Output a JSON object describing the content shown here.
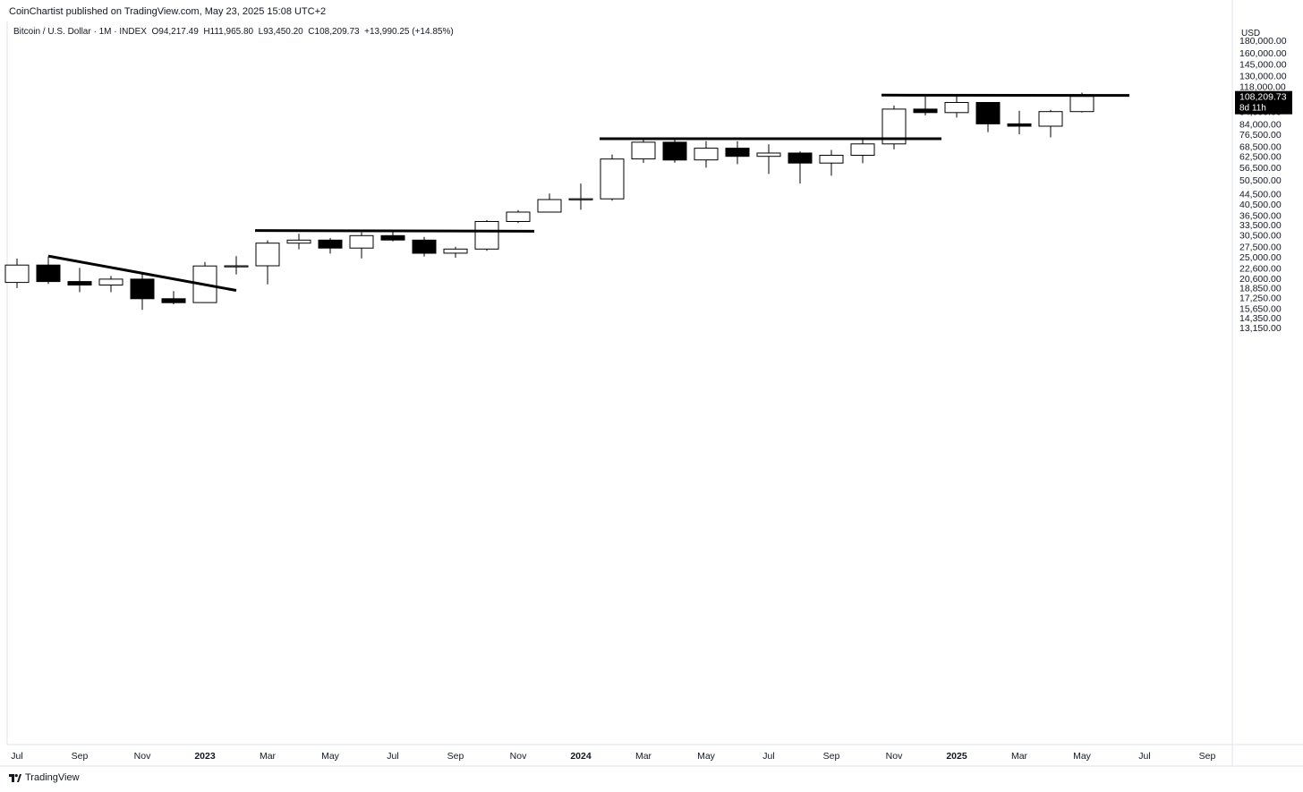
{
  "header": {
    "published": "CoinChartist published on TradingView.com, May 23, 2025 15:08 UTC+2",
    "symbol": "Bitcoin / U.S. Dollar · 1M · INDEX",
    "open": "O94,217.49",
    "high": "H111,965.80",
    "low": "L93,450.20",
    "close": "C108,209.73",
    "change": "+13,990.25 (+14.85%)"
  },
  "footer": {
    "brand": "TradingView"
  },
  "price_axis": {
    "currency": "USD",
    "ticks": [
      "180,000.00",
      "160,000.00",
      "145,000.00",
      "130,000.00",
      "118,000.00",
      "94,000.00",
      "84,000.00",
      "76,500.00",
      "68,500.00",
      "62,500.00",
      "56,500.00",
      "50,500.00",
      "44,500.00",
      "40,500.00",
      "36,500.00",
      "33,500.00",
      "30,500.00",
      "27,500.00",
      "25,000.00",
      "22,600.00",
      "20,600.00",
      "18,850.00",
      "17,250.00",
      "15,650.00",
      "14,350.00",
      "13,150.00"
    ],
    "last_price_label": "108,209.73",
    "countdown_label": "8d 11h"
  },
  "time_axis": {
    "labels": [
      {
        "text": "Jul",
        "bold": false
      },
      {
        "text": "Sep",
        "bold": false
      },
      {
        "text": "Nov",
        "bold": false
      },
      {
        "text": "2023",
        "bold": true
      },
      {
        "text": "Mar",
        "bold": false
      },
      {
        "text": "May",
        "bold": false
      },
      {
        "text": "Jul",
        "bold": false
      },
      {
        "text": "Sep",
        "bold": false
      },
      {
        "text": "Nov",
        "bold": false
      },
      {
        "text": "2024",
        "bold": true
      },
      {
        "text": "Mar",
        "bold": false
      },
      {
        "text": "May",
        "bold": false
      },
      {
        "text": "Jul",
        "bold": false
      },
      {
        "text": "Sep",
        "bold": false
      },
      {
        "text": "Nov",
        "bold": false
      },
      {
        "text": "2025",
        "bold": true
      },
      {
        "text": "Mar",
        "bold": false
      },
      {
        "text": "May",
        "bold": false
      },
      {
        "text": "Jul",
        "bold": false
      },
      {
        "text": "Sep",
        "bold": false
      }
    ]
  },
  "colors": {
    "up_fill": "#ffffff",
    "down_fill": "#000000",
    "outline": "#000000",
    "grid": "#f0f3fa",
    "axis_text": "#131722",
    "price_tag": "#000000"
  },
  "chart_data": {
    "type": "candlestick",
    "scale": "log",
    "x_unit": "month",
    "grid": false,
    "ylim": [
      12600,
      205000
    ],
    "candles": [
      {
        "date": "2022-07",
        "open": 19900,
        "high": 24700,
        "low": 18900,
        "close": 23300
      },
      {
        "date": "2022-08",
        "open": 23300,
        "high": 25200,
        "low": 19600,
        "close": 20050
      },
      {
        "date": "2022-09",
        "open": 20050,
        "high": 22700,
        "low": 18200,
        "close": 19430
      },
      {
        "date": "2022-10",
        "open": 19430,
        "high": 21100,
        "low": 18200,
        "close": 20500
      },
      {
        "date": "2022-11",
        "open": 20500,
        "high": 21500,
        "low": 15500,
        "close": 17150
      },
      {
        "date": "2022-12",
        "open": 17150,
        "high": 18400,
        "low": 16300,
        "close": 16550
      },
      {
        "date": "2023-01",
        "open": 16550,
        "high": 23950,
        "low": 16500,
        "close": 23100
      },
      {
        "date": "2023-02",
        "open": 23100,
        "high": 25250,
        "low": 21400,
        "close": 23150
      },
      {
        "date": "2023-03",
        "open": 23150,
        "high": 29200,
        "low": 19550,
        "close": 28450
      },
      {
        "date": "2023-04",
        "open": 28450,
        "high": 31000,
        "low": 26900,
        "close": 29250
      },
      {
        "date": "2023-05",
        "open": 29250,
        "high": 29800,
        "low": 25850,
        "close": 27200
      },
      {
        "date": "2023-06",
        "open": 27200,
        "high": 31400,
        "low": 24750,
        "close": 30450
      },
      {
        "date": "2023-07",
        "open": 30450,
        "high": 31800,
        "low": 28900,
        "close": 29250
      },
      {
        "date": "2023-08",
        "open": 29250,
        "high": 30100,
        "low": 25200,
        "close": 25950
      },
      {
        "date": "2023-09",
        "open": 25950,
        "high": 27500,
        "low": 24900,
        "close": 26950
      },
      {
        "date": "2023-10",
        "open": 26950,
        "high": 35100,
        "low": 26550,
        "close": 34650
      },
      {
        "date": "2023-11",
        "open": 34650,
        "high": 38450,
        "low": 34150,
        "close": 37750
      },
      {
        "date": "2023-12",
        "open": 37750,
        "high": 44700,
        "low": 37650,
        "close": 42300
      },
      {
        "date": "2024-01",
        "open": 42300,
        "high": 48950,
        "low": 38550,
        "close": 42600
      },
      {
        "date": "2024-02",
        "open": 42600,
        "high": 63800,
        "low": 41900,
        "close": 61200
      },
      {
        "date": "2024-03",
        "open": 61200,
        "high": 73800,
        "low": 59100,
        "close": 71300
      },
      {
        "date": "2024-04",
        "open": 71300,
        "high": 72800,
        "low": 59200,
        "close": 60650
      },
      {
        "date": "2024-05",
        "open": 60650,
        "high": 71950,
        "low": 56550,
        "close": 67500
      },
      {
        "date": "2024-06",
        "open": 67500,
        "high": 71950,
        "low": 58400,
        "close": 62700
      },
      {
        "date": "2024-07",
        "open": 62700,
        "high": 70000,
        "low": 53500,
        "close": 64600
      },
      {
        "date": "2024-08",
        "open": 64600,
        "high": 65600,
        "low": 49000,
        "close": 58950
      },
      {
        "date": "2024-09",
        "open": 58950,
        "high": 66500,
        "low": 52550,
        "close": 63300
      },
      {
        "date": "2024-10",
        "open": 63300,
        "high": 73600,
        "low": 58900,
        "close": 70200
      },
      {
        "date": "2024-11",
        "open": 70200,
        "high": 99600,
        "low": 66800,
        "close": 96400
      },
      {
        "date": "2024-12",
        "open": 96400,
        "high": 108300,
        "low": 91000,
        "close": 93400
      },
      {
        "date": "2025-01",
        "open": 93400,
        "high": 109400,
        "low": 89200,
        "close": 102400
      },
      {
        "date": "2025-02",
        "open": 102400,
        "high": 102500,
        "low": 78200,
        "close": 84300
      },
      {
        "date": "2025-03",
        "open": 84300,
        "high": 95000,
        "low": 76600,
        "close": 82500
      },
      {
        "date": "2025-04",
        "open": 82500,
        "high": 95800,
        "low": 74500,
        "close": 94200
      },
      {
        "date": "2025-05",
        "open": 94217.49,
        "high": 111965.8,
        "low": 93450.2,
        "close": 108209.73
      }
    ],
    "trendlines": [
      {
        "kind": "descending",
        "from": {
          "date": "2022-08",
          "price": 25300
        },
        "to": {
          "date": "2023-02",
          "price": 18500
        }
      },
      {
        "kind": "horizontal",
        "from": {
          "date": "2023-03",
          "price": 31900
        },
        "to": {
          "date": "2023-11",
          "price": 31700
        }
      },
      {
        "kind": "horizontal",
        "from": {
          "date": "2024-02",
          "price": 73600
        },
        "to": {
          "date": "2024-12",
          "price": 73600
        }
      },
      {
        "kind": "horizontal",
        "from": {
          "date": "2024-11",
          "price": 109500
        },
        "to": {
          "date": "2025-06",
          "price": 109200
        }
      }
    ]
  }
}
